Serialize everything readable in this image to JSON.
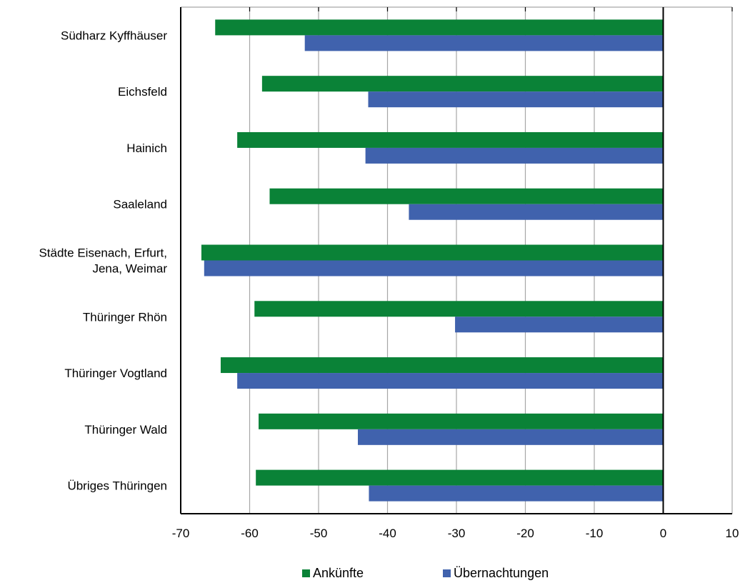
{
  "chart_data": {
    "type": "bar",
    "orientation": "horizontal",
    "categories": [
      [
        "Südharz Kyffhäuser"
      ],
      [
        "Eichsfeld"
      ],
      [
        "Hainich"
      ],
      [
        "Saaleland"
      ],
      [
        "Städte Eisenach, Erfurt,",
        "Jena, Weimar"
      ],
      [
        "Thüringer Rhön"
      ],
      [
        "Thüringer Vogtland"
      ],
      [
        "Thüringer Wald"
      ],
      [
        "Übriges Thüringen"
      ]
    ],
    "series": [
      {
        "name": "Ankünfte",
        "color": "#0a8237",
        "values": [
          -65.0,
          -58.2,
          -61.8,
          -57.1,
          -67.0,
          -59.3,
          -64.2,
          -58.7,
          -59.1
        ]
      },
      {
        "name": "Übernachtungen",
        "color": "#4062ad",
        "values": [
          -52.0,
          -42.8,
          -43.2,
          -36.9,
          -66.6,
          -30.2,
          -61.8,
          -44.3,
          -42.7
        ]
      }
    ],
    "xlim": [
      -70,
      10
    ],
    "x_ticks": [
      -70,
      -60,
      -50,
      -40,
      -30,
      -20,
      -10,
      0,
      10
    ],
    "grid": true,
    "legend": "bottom-center",
    "title": "",
    "xlabel": "",
    "ylabel": ""
  }
}
